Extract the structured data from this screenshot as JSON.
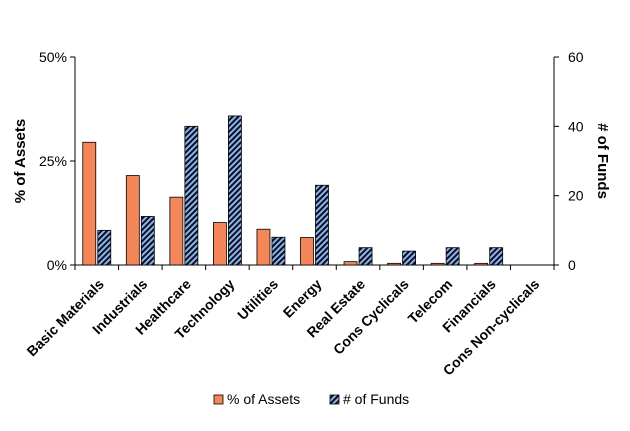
{
  "chart_data": {
    "type": "bar",
    "categories": [
      "Basic Materials",
      "Industrials",
      "Healthcare",
      "Technology",
      "Utilities",
      "Energy",
      "Real Estate",
      "Cons Cyclicals",
      "Telecom",
      "Financials",
      "Cons Non-cyclicals"
    ],
    "series": [
      {
        "name": "% of Assets",
        "axis": "left",
        "color": "#F4875A",
        "values": [
          29.5,
          21.5,
          16.3,
          10.2,
          8.6,
          6.6,
          0.8,
          0.4,
          0.4,
          0.4,
          0
        ]
      },
      {
        "name": "# of Funds",
        "axis": "right",
        "color": "#8DB4E2",
        "pattern": "diagonal-stripes",
        "values": [
          10,
          14,
          40,
          43,
          8,
          23,
          5,
          4,
          5,
          5,
          0
        ]
      }
    ],
    "yaxis_left": {
      "label": "% of Assets",
      "ylim": [
        0,
        50
      ],
      "ticks": [
        0,
        25,
        50
      ],
      "tick_labels": [
        "0%",
        "25%",
        "50%"
      ]
    },
    "yaxis_right": {
      "label": "# of Funds",
      "ylim": [
        0,
        60
      ],
      "ticks": [
        0,
        20,
        40,
        60
      ],
      "tick_labels": [
        "0",
        "20",
        "40",
        "60"
      ]
    },
    "legend_position": "bottom",
    "grid": false
  }
}
